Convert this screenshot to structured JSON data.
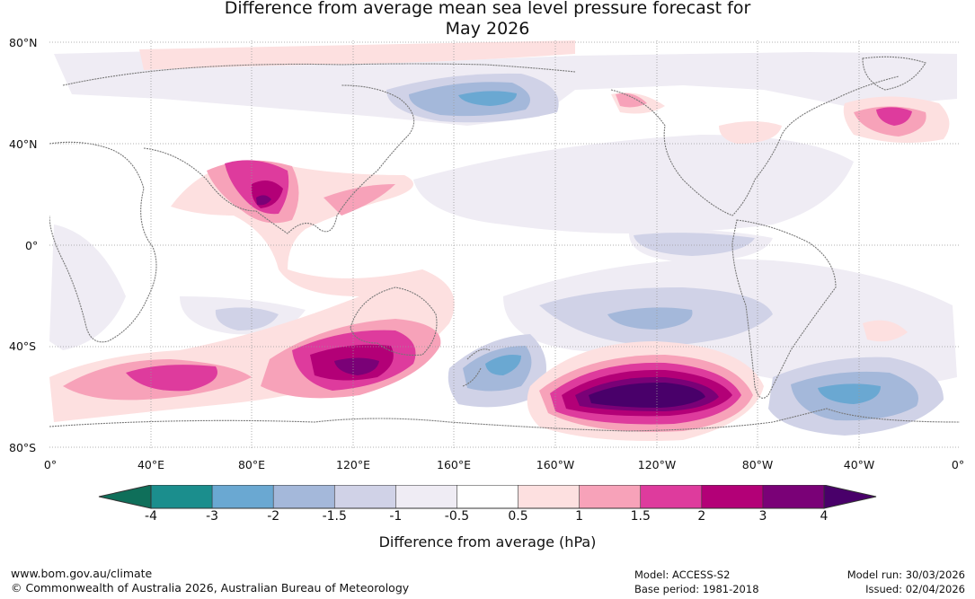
{
  "title_line1": "Difference from average mean sea level pressure forecast for",
  "title_line2": "May 2026",
  "lat_labels": [
    "80°N",
    "40°N",
    "0°",
    "40°S",
    "80°S"
  ],
  "lon_labels": [
    "0°",
    "40°E",
    "80°E",
    "120°E",
    "160°E",
    "160°W",
    "120°W",
    "80°W",
    "40°W",
    "0°"
  ],
  "colorbar": {
    "ticks": [
      "-4",
      "-3",
      "-2",
      "-1.5",
      "-1",
      "-0.5",
      "0.5",
      "1",
      "1.5",
      "2",
      "3",
      "4"
    ],
    "colors": [
      "#1b8e8d",
      "#6aa8d2",
      "#a4b8da",
      "#d0d2e7",
      "#efecf4",
      "#ffffff",
      "#fde0e0",
      "#f7a2b9",
      "#de3b9d",
      "#b30077",
      "#7a0177",
      "#49006a"
    ],
    "low_color": "#0f6f5a",
    "high_color": "#49006a",
    "label": "Difference from average (hPa)"
  },
  "footer": {
    "url": "www.bom.gov.au/climate",
    "copyright": "© Commonwealth of Australia 2026, Australian Bureau of Meteorology",
    "model": "Model: ACCESS-S2",
    "base_period": "Base period: 1981-2018",
    "model_run": "Model run: 30/03/2026",
    "issued": "Issued: 02/04/2026"
  }
}
